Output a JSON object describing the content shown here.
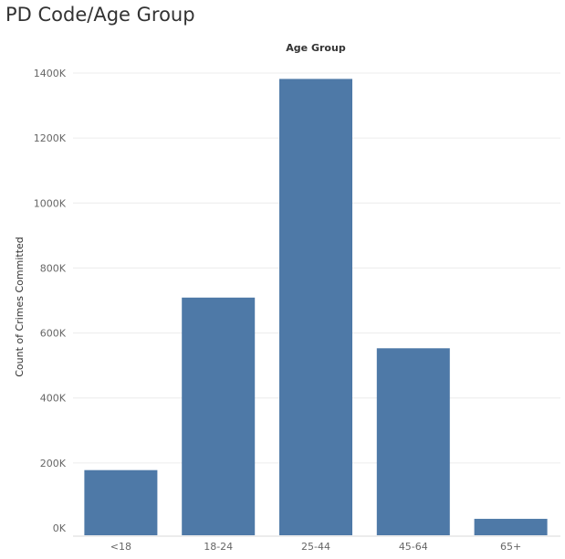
{
  "title": "PD Code/Age Group",
  "chart_data": {
    "type": "bar",
    "title": "PD Code/Age Group",
    "header_label": "Age Group",
    "xlabel": "",
    "ylabel": "Count of Crimes Committed",
    "categories": [
      "<18",
      "18-24",
      "25-44",
      "45-64",
      "65+"
    ],
    "values": [
      178000,
      709000,
      1382000,
      553000,
      28000
    ],
    "ylim": [
      0,
      1400000
    ],
    "yticks": [
      0,
      200000,
      400000,
      600000,
      800000,
      1000000,
      1200000,
      1400000
    ],
    "ytick_labels": [
      "0K",
      "200K",
      "400K",
      "600K",
      "800K",
      "1000K",
      "1200K",
      "1400K"
    ],
    "bar_color": "#4e79a7",
    "grid": true
  }
}
